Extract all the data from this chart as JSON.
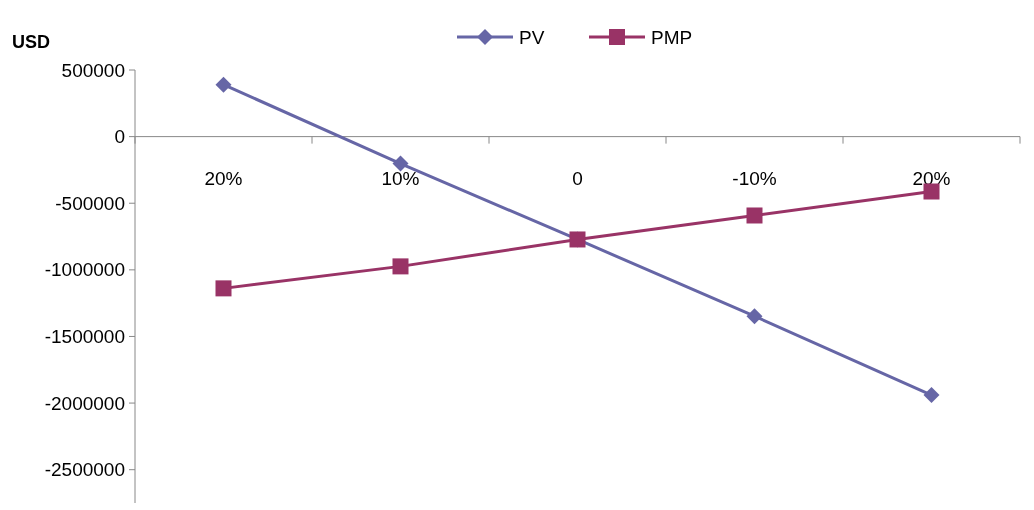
{
  "chart_data": {
    "type": "line",
    "ylabel": "USD",
    "categories": [
      "20%",
      "10%",
      "0",
      "-10%",
      "20%"
    ],
    "series": [
      {
        "name": "PV",
        "color": "#6666a6",
        "marker": "diamond",
        "values": [
          390000,
          -202000,
          -772000,
          -1348000,
          -1940000
        ]
      },
      {
        "name": "PMP",
        "color": "#993366",
        "marker": "square",
        "values": [
          -1139000,
          -974000,
          -772000,
          -592000,
          -412000
        ]
      }
    ],
    "ylim": [
      -2750000,
      500000
    ],
    "yticks": [
      500000,
      0,
      -500000,
      -1000000,
      -1500000,
      -2000000,
      -2500000
    ],
    "grid": false,
    "legend": "top"
  }
}
